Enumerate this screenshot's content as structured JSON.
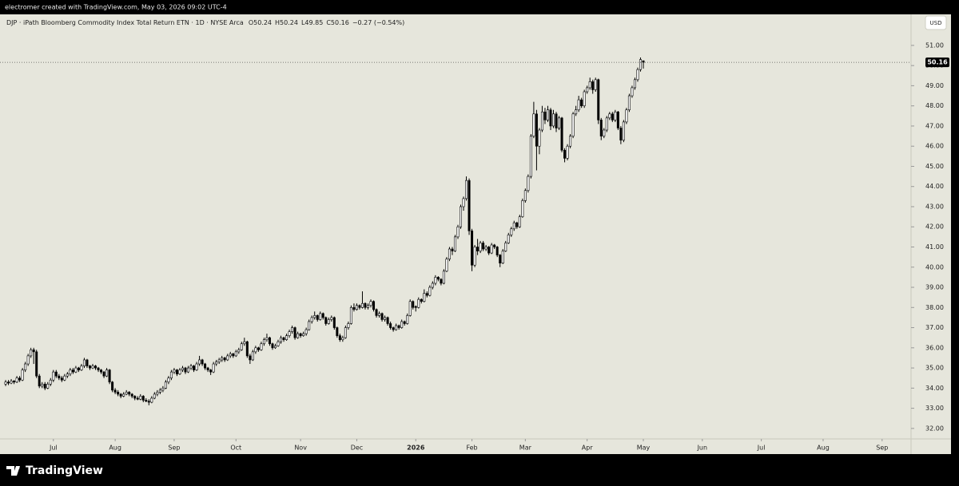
{
  "header": {
    "credit": "electromer created with TradingView.com, May 03, 2026 09:02 UTC-4",
    "brand": "TradingView"
  },
  "chart_data": {
    "type": "candlestick",
    "symbol_line": "DJP · iPath Bloomberg Commodity Index Total Return ETN · 1D · NYSE Arca",
    "ohlc_letters": [
      "O",
      "H",
      "L",
      "C"
    ],
    "change_label": "−0.27 (−0.54%)",
    "currency": "USD",
    "up_color": "#ffffff",
    "down_color": "#000000",
    "outline_color": "#000000",
    "xlim": [
      -2,
      322.3
    ],
    "xticks": [
      {
        "value": 17,
        "label": "Jul"
      },
      {
        "value": 39,
        "label": "Aug"
      },
      {
        "value": 60,
        "label": "Sep"
      },
      {
        "value": 82,
        "label": "Oct"
      },
      {
        "value": 105,
        "label": "Nov"
      },
      {
        "value": 125,
        "label": "Dec"
      },
      {
        "value": 146,
        "label": "2026"
      },
      {
        "value": 166,
        "label": "Feb"
      },
      {
        "value": 185,
        "label": "Mar"
      },
      {
        "value": 207,
        "label": "Apr"
      },
      {
        "value": 227,
        "label": "May"
      },
      {
        "value": 248,
        "label": "Jun"
      },
      {
        "value": 269,
        "label": "Jul"
      },
      {
        "value": 291,
        "label": "Aug"
      },
      {
        "value": 312,
        "label": "Sep"
      }
    ],
    "ylim": [
      31.48,
      52.46
    ],
    "yticks": [
      {
        "value": 32,
        "label": "32.00"
      },
      {
        "value": 33,
        "label": "33.00"
      },
      {
        "value": 34,
        "label": "34.00"
      },
      {
        "value": 35,
        "label": "35.00"
      },
      {
        "value": 36,
        "label": "36.00"
      },
      {
        "value": 37,
        "label": "37.00"
      },
      {
        "value": 38,
        "label": "38.00"
      },
      {
        "value": 39,
        "label": "39.00"
      },
      {
        "value": 40,
        "label": "40.00"
      },
      {
        "value": 41,
        "label": "41.00"
      },
      {
        "value": 42,
        "label": "42.00"
      },
      {
        "value": 43,
        "label": "43.00"
      },
      {
        "value": 44,
        "label": "44.00"
      },
      {
        "value": 45,
        "label": "45.00"
      },
      {
        "value": 46,
        "label": "46.00"
      },
      {
        "value": 47,
        "label": "47.00"
      },
      {
        "value": 48,
        "label": "48.00"
      },
      {
        "value": 49,
        "label": "49.00"
      },
      {
        "value": 50,
        "label": "50.00"
      },
      {
        "value": 51,
        "label": "51.00"
      }
    ],
    "ohlc": [
      [
        34.2,
        34.4,
        34.1,
        34.3
      ],
      [
        34.3,
        34.4,
        34.15,
        34.25
      ],
      [
        34.25,
        34.45,
        34.2,
        34.35
      ],
      [
        34.35,
        34.4,
        34.2,
        34.3
      ],
      [
        34.3,
        34.6,
        34.25,
        34.5
      ],
      [
        34.5,
        34.6,
        34.3,
        34.4
      ],
      [
        34.4,
        35.0,
        34.35,
        34.9
      ],
      [
        34.9,
        35.3,
        34.8,
        35.2
      ],
      [
        35.2,
        35.7,
        35.1,
        35.6
      ],
      [
        35.6,
        36.0,
        35.5,
        35.9
      ],
      [
        35.9,
        36.0,
        35.2,
        35.8
      ],
      [
        35.8,
        35.9,
        34.5,
        34.6
      ],
      [
        34.6,
        34.7,
        34.0,
        34.1
      ],
      [
        34.1,
        34.3,
        34.0,
        34.2
      ],
      [
        34.2,
        34.3,
        33.9,
        34.0
      ],
      [
        34.0,
        34.3,
        33.95,
        34.2
      ],
      [
        34.2,
        34.5,
        34.1,
        34.4
      ],
      [
        34.4,
        34.9,
        34.3,
        34.8
      ],
      [
        34.8,
        34.9,
        34.5,
        34.6
      ],
      [
        34.6,
        34.7,
        34.4,
        34.5
      ],
      [
        34.5,
        34.6,
        34.3,
        34.4
      ],
      [
        34.4,
        34.7,
        34.35,
        34.6
      ],
      [
        34.6,
        34.8,
        34.5,
        34.7
      ],
      [
        34.7,
        35.0,
        34.6,
        34.9
      ],
      [
        34.9,
        35.0,
        34.7,
        34.8
      ],
      [
        34.8,
        35.1,
        34.75,
        35.0
      ],
      [
        35.0,
        35.05,
        34.8,
        34.9
      ],
      [
        34.9,
        35.2,
        34.85,
        35.1
      ],
      [
        35.1,
        35.5,
        35.0,
        35.4
      ],
      [
        35.4,
        35.45,
        35.0,
        35.1
      ],
      [
        35.1,
        35.15,
        34.9,
        35.0
      ],
      [
        35.0,
        35.2,
        34.95,
        35.1
      ],
      [
        35.1,
        35.15,
        34.9,
        35.0
      ],
      [
        35.0,
        35.05,
        34.8,
        34.9
      ],
      [
        34.9,
        34.95,
        34.7,
        34.8
      ],
      [
        34.8,
        34.85,
        34.5,
        34.6
      ],
      [
        34.6,
        35.0,
        34.55,
        34.9
      ],
      [
        34.9,
        34.95,
        34.2,
        34.3
      ],
      [
        34.3,
        34.35,
        33.8,
        33.9
      ],
      [
        33.9,
        34.0,
        33.7,
        33.8
      ],
      [
        33.8,
        33.9,
        33.6,
        33.7
      ],
      [
        33.7,
        33.75,
        33.5,
        33.6
      ],
      [
        33.6,
        33.8,
        33.55,
        33.7
      ],
      [
        33.7,
        33.9,
        33.65,
        33.8
      ],
      [
        33.8,
        33.85,
        33.6,
        33.7
      ],
      [
        33.7,
        33.75,
        33.5,
        33.6
      ],
      [
        33.6,
        33.65,
        33.4,
        33.5
      ],
      [
        33.5,
        33.6,
        33.4,
        33.45
      ],
      [
        33.45,
        33.7,
        33.4,
        33.6
      ],
      [
        33.6,
        33.65,
        33.3,
        33.4
      ],
      [
        33.4,
        33.5,
        33.3,
        33.35
      ],
      [
        33.35,
        33.45,
        33.15,
        33.3
      ],
      [
        33.3,
        33.6,
        33.25,
        33.5
      ],
      [
        33.5,
        33.8,
        33.45,
        33.7
      ],
      [
        33.7,
        33.9,
        33.6,
        33.8
      ],
      [
        33.8,
        34.0,
        33.7,
        33.9
      ],
      [
        33.9,
        34.1,
        33.8,
        34.0
      ],
      [
        34.0,
        34.4,
        33.95,
        34.3
      ],
      [
        34.3,
        34.6,
        34.2,
        34.5
      ],
      [
        34.5,
        34.9,
        34.4,
        34.8
      ],
      [
        34.8,
        35.0,
        34.7,
        34.9
      ],
      [
        34.9,
        34.95,
        34.6,
        34.7
      ],
      [
        34.7,
        35.0,
        34.65,
        34.9
      ],
      [
        34.9,
        35.1,
        34.8,
        35.0
      ],
      [
        35.0,
        35.05,
        34.7,
        34.8
      ],
      [
        34.8,
        35.1,
        34.75,
        35.0
      ],
      [
        35.0,
        35.2,
        34.9,
        35.1
      ],
      [
        35.1,
        35.15,
        34.8,
        34.9
      ],
      [
        34.9,
        35.3,
        34.85,
        35.2
      ],
      [
        35.2,
        35.6,
        35.1,
        35.4
      ],
      [
        35.4,
        35.45,
        35.1,
        35.2
      ],
      [
        35.2,
        35.25,
        34.9,
        35.0
      ],
      [
        35.0,
        35.05,
        34.8,
        34.9
      ],
      [
        34.9,
        34.95,
        34.65,
        34.8
      ],
      [
        34.8,
        35.3,
        34.75,
        35.2
      ],
      [
        35.2,
        35.4,
        35.1,
        35.3
      ],
      [
        35.3,
        35.5,
        35.2,
        35.4
      ],
      [
        35.4,
        35.6,
        35.3,
        35.5
      ],
      [
        35.5,
        35.55,
        35.3,
        35.4
      ],
      [
        35.4,
        35.7,
        35.35,
        35.6
      ],
      [
        35.6,
        35.8,
        35.5,
        35.7
      ],
      [
        35.7,
        35.75,
        35.5,
        35.6
      ],
      [
        35.6,
        35.9,
        35.55,
        35.8
      ],
      [
        35.8,
        36.0,
        35.7,
        35.9
      ],
      [
        35.9,
        36.3,
        35.85,
        36.2
      ],
      [
        36.2,
        36.5,
        36.1,
        36.3
      ],
      [
        36.3,
        36.35,
        35.5,
        35.6
      ],
      [
        35.6,
        35.7,
        35.2,
        35.4
      ],
      [
        35.4,
        35.9,
        35.35,
        35.8
      ],
      [
        35.8,
        36.1,
        35.7,
        36.0
      ],
      [
        36.0,
        36.05,
        35.8,
        35.9
      ],
      [
        35.9,
        36.3,
        35.85,
        36.2
      ],
      [
        36.2,
        36.5,
        36.1,
        36.4
      ],
      [
        36.4,
        36.7,
        36.3,
        36.5
      ],
      [
        36.5,
        36.55,
        36.1,
        36.2
      ],
      [
        36.2,
        36.25,
        35.9,
        36.0
      ],
      [
        36.0,
        36.2,
        35.95,
        36.1
      ],
      [
        36.1,
        36.4,
        36.05,
        36.3
      ],
      [
        36.3,
        36.6,
        36.2,
        36.5
      ],
      [
        36.5,
        36.55,
        36.3,
        36.4
      ],
      [
        36.4,
        36.7,
        36.35,
        36.6
      ],
      [
        36.6,
        36.9,
        36.5,
        36.8
      ],
      [
        36.8,
        37.1,
        36.7,
        37.0
      ],
      [
        37.0,
        37.05,
        36.4,
        36.5
      ],
      [
        36.5,
        36.8,
        36.45,
        36.7
      ],
      [
        36.7,
        36.75,
        36.5,
        36.6
      ],
      [
        36.6,
        36.8,
        36.55,
        36.7
      ],
      [
        36.7,
        37.0,
        36.6,
        36.9
      ],
      [
        36.9,
        37.4,
        36.85,
        37.3
      ],
      [
        37.3,
        37.6,
        37.2,
        37.5
      ],
      [
        37.5,
        37.8,
        37.4,
        37.6
      ],
      [
        37.6,
        37.65,
        37.3,
        37.4
      ],
      [
        37.4,
        37.8,
        37.35,
        37.7
      ],
      [
        37.7,
        37.75,
        37.4,
        37.5
      ],
      [
        37.5,
        37.55,
        37.1,
        37.2
      ],
      [
        37.2,
        37.5,
        37.15,
        37.4
      ],
      [
        37.4,
        37.6,
        37.3,
        37.5
      ],
      [
        37.5,
        37.55,
        36.9,
        37.0
      ],
      [
        37.0,
        37.05,
        36.5,
        36.6
      ],
      [
        36.6,
        36.7,
        36.3,
        36.4
      ],
      [
        36.4,
        36.6,
        36.3,
        36.5
      ],
      [
        36.5,
        37.1,
        36.45,
        37.0
      ],
      [
        37.0,
        37.3,
        36.9,
        37.2
      ],
      [
        37.2,
        38.1,
        37.15,
        38.0
      ],
      [
        38.0,
        38.2,
        37.8,
        37.9
      ],
      [
        37.9,
        38.2,
        37.85,
        38.1
      ],
      [
        38.1,
        38.15,
        37.9,
        38.0
      ],
      [
        38.0,
        38.8,
        37.95,
        38.2
      ],
      [
        38.2,
        38.25,
        37.9,
        38.0
      ],
      [
        38.0,
        38.2,
        37.9,
        38.1
      ],
      [
        38.1,
        38.4,
        38.0,
        38.3
      ],
      [
        38.3,
        38.35,
        37.8,
        37.9
      ],
      [
        37.9,
        37.95,
        37.5,
        37.6
      ],
      [
        37.6,
        37.8,
        37.5,
        37.7
      ],
      [
        37.7,
        37.75,
        37.3,
        37.4
      ],
      [
        37.4,
        37.6,
        37.3,
        37.5
      ],
      [
        37.5,
        37.55,
        37.1,
        37.2
      ],
      [
        37.2,
        37.3,
        36.9,
        37.0
      ],
      [
        37.0,
        37.05,
        36.8,
        36.9
      ],
      [
        36.9,
        37.2,
        36.85,
        37.1
      ],
      [
        37.1,
        37.15,
        36.9,
        37.0
      ],
      [
        37.0,
        37.4,
        36.95,
        37.3
      ],
      [
        37.3,
        37.35,
        37.1,
        37.2
      ],
      [
        37.2,
        37.7,
        37.15,
        37.6
      ],
      [
        37.6,
        38.4,
        37.55,
        38.3
      ],
      [
        38.3,
        38.35,
        37.9,
        38.0
      ],
      [
        38.05,
        38.1,
        37.8,
        38.0
      ],
      [
        38.0,
        38.5,
        37.95,
        38.4
      ],
      [
        38.4,
        38.45,
        38.2,
        38.3
      ],
      [
        38.3,
        38.9,
        38.25,
        38.7
      ],
      [
        38.7,
        38.8,
        38.5,
        38.6
      ],
      [
        38.6,
        39.1,
        38.55,
        39.0
      ],
      [
        39.0,
        39.3,
        38.9,
        39.2
      ],
      [
        39.2,
        39.6,
        39.1,
        39.5
      ],
      [
        39.5,
        39.55,
        39.3,
        39.4
      ],
      [
        39.4,
        39.45,
        39.1,
        39.2
      ],
      [
        39.2,
        39.9,
        39.15,
        39.8
      ],
      [
        39.8,
        40.5,
        39.75,
        40.4
      ],
      [
        40.4,
        41.0,
        40.3,
        40.9
      ],
      [
        40.9,
        41.0,
        40.6,
        40.8
      ],
      [
        40.8,
        41.6,
        40.75,
        41.5
      ],
      [
        41.5,
        42.1,
        41.4,
        42.0
      ],
      [
        42.0,
        43.1,
        41.9,
        43.0
      ],
      [
        43.0,
        43.5,
        42.8,
        43.4
      ],
      [
        43.4,
        44.5,
        43.3,
        44.3
      ],
      [
        44.3,
        44.4,
        41.6,
        41.8
      ],
      [
        41.8,
        41.9,
        39.8,
        40.1
      ],
      [
        40.1,
        41.1,
        40.0,
        41.0
      ],
      [
        41.0,
        41.4,
        40.6,
        40.8
      ],
      [
        40.8,
        41.3,
        40.7,
        41.2
      ],
      [
        41.2,
        41.3,
        40.8,
        40.9
      ],
      [
        40.9,
        41.1,
        40.8,
        41.0
      ],
      [
        41.0,
        41.05,
        40.6,
        40.7
      ],
      [
        40.7,
        41.2,
        40.65,
        41.1
      ],
      [
        41.1,
        41.15,
        40.9,
        41.0
      ],
      [
        41.0,
        41.05,
        40.5,
        40.6
      ],
      [
        40.6,
        40.65,
        40.0,
        40.2
      ],
      [
        40.2,
        40.9,
        40.15,
        40.8
      ],
      [
        40.8,
        41.3,
        40.75,
        41.2
      ],
      [
        41.2,
        41.7,
        41.15,
        41.6
      ],
      [
        41.6,
        42.0,
        41.5,
        41.9
      ],
      [
        41.9,
        42.3,
        41.8,
        42.2
      ],
      [
        42.2,
        42.25,
        41.9,
        42.0
      ],
      [
        42.0,
        42.6,
        41.95,
        42.5
      ],
      [
        42.5,
        43.4,
        42.45,
        43.3
      ],
      [
        43.3,
        43.9,
        43.2,
        43.8
      ],
      [
        43.8,
        44.6,
        43.7,
        44.5
      ],
      [
        44.5,
        46.6,
        44.4,
        46.5
      ],
      [
        46.5,
        48.2,
        46.4,
        47.6
      ],
      [
        47.6,
        47.8,
        44.8,
        46.0
      ],
      [
        46.0,
        46.9,
        45.6,
        46.8
      ],
      [
        46.8,
        48.0,
        46.7,
        47.7
      ],
      [
        47.7,
        47.9,
        47.1,
        47.3
      ],
      [
        47.3,
        48.0,
        47.2,
        47.8
      ],
      [
        47.8,
        47.9,
        46.8,
        47.0
      ],
      [
        47.0,
        47.8,
        46.9,
        47.6
      ],
      [
        47.6,
        47.7,
        46.7,
        46.9
      ],
      [
        46.9,
        47.5,
        46.8,
        47.4
      ],
      [
        47.4,
        47.45,
        45.7,
        45.8
      ],
      [
        45.8,
        45.9,
        45.2,
        45.4
      ],
      [
        45.4,
        46.1,
        45.3,
        46.0
      ],
      [
        46.0,
        46.6,
        45.9,
        46.5
      ],
      [
        46.5,
        47.7,
        46.4,
        47.6
      ],
      [
        47.6,
        48.0,
        47.5,
        47.8
      ],
      [
        47.8,
        48.5,
        47.7,
        48.3
      ],
      [
        48.3,
        48.4,
        47.9,
        48.0
      ],
      [
        48.0,
        48.8,
        47.9,
        48.7
      ],
      [
        48.7,
        49.0,
        48.6,
        48.9
      ],
      [
        48.9,
        49.4,
        48.8,
        49.2
      ],
      [
        49.2,
        49.3,
        48.6,
        48.8
      ],
      [
        48.8,
        49.4,
        48.7,
        49.3
      ],
      [
        49.3,
        49.35,
        47.1,
        47.3
      ],
      [
        47.3,
        47.4,
        46.3,
        46.5
      ],
      [
        46.5,
        46.9,
        46.4,
        46.8
      ],
      [
        46.8,
        47.5,
        46.7,
        47.4
      ],
      [
        47.4,
        47.7,
        47.3,
        47.6
      ],
      [
        47.6,
        47.7,
        47.2,
        47.3
      ],
      [
        47.3,
        47.8,
        47.2,
        47.7
      ],
      [
        47.7,
        47.75,
        46.8,
        46.9
      ],
      [
        46.9,
        47.0,
        46.1,
        46.3
      ],
      [
        46.3,
        47.3,
        46.2,
        47.2
      ],
      [
        47.2,
        47.9,
        47.1,
        47.8
      ],
      [
        47.8,
        48.6,
        47.7,
        48.5
      ],
      [
        48.5,
        49.0,
        48.4,
        48.9
      ],
      [
        48.9,
        49.4,
        48.8,
        49.3
      ],
      [
        49.3,
        49.9,
        49.2,
        49.8
      ],
      [
        49.8,
        50.4,
        49.7,
        50.3
      ],
      [
        50.24,
        50.24,
        49.85,
        50.16
      ]
    ]
  }
}
